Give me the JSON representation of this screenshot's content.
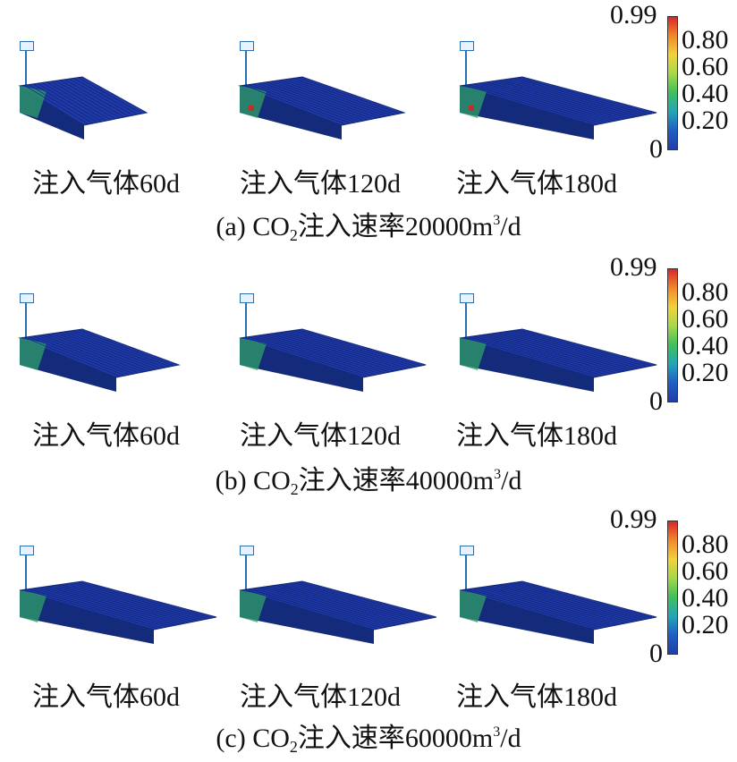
{
  "rows": [
    {
      "id": "a",
      "caption": {
        "prefix": "(a)  CO",
        "sub": "2",
        "middle": "注入速率20000m",
        "sup": "3",
        "suffix": "/d"
      },
      "panels": [
        {
          "label": "注入气体60d",
          "extent": 0.35
        },
        {
          "label": "注入气体120d",
          "extent": 0.7
        },
        {
          "label": "注入气体180d",
          "extent": 1.0
        }
      ]
    },
    {
      "id": "b",
      "caption": {
        "prefix": "(b)  CO",
        "sub": "2",
        "middle": "注入速率40000m",
        "sup": "3",
        "suffix": "/d"
      },
      "panels": [
        {
          "label": "注入气体60d",
          "extent": 0.65
        },
        {
          "label": "注入气体120d",
          "extent": 0.9
        },
        {
          "label": "注入气体180d",
          "extent": 1.0
        }
      ]
    },
    {
      "id": "c",
      "caption": {
        "prefix": "(c)  CO",
        "sub": "2",
        "middle": "注入速率60000m",
        "sup": "3",
        "suffix": "/d"
      },
      "panels": [
        {
          "label": "注入气体60d",
          "extent": 1.0
        },
        {
          "label": "注入气体120d",
          "extent": 1.0
        },
        {
          "label": "注入气体180d",
          "extent": 1.0
        }
      ]
    }
  ],
  "colorbar": {
    "max_label": "0.99",
    "ticks": [
      "0.80",
      "0.60",
      "0.40",
      "0.20"
    ],
    "min_label": "0",
    "gradient": [
      "#1f3fa8",
      "#1f5fc4",
      "#23a6b8",
      "#3fbf5a",
      "#a6d84a",
      "#f2d23a",
      "#f08a2a",
      "#d8262a"
    ]
  },
  "colors": {
    "cell_base": "#1f3aa8",
    "cell_dark": "#142a7a",
    "cell_green": "#2f9f6a",
    "cell_red": "#c0302a"
  }
}
